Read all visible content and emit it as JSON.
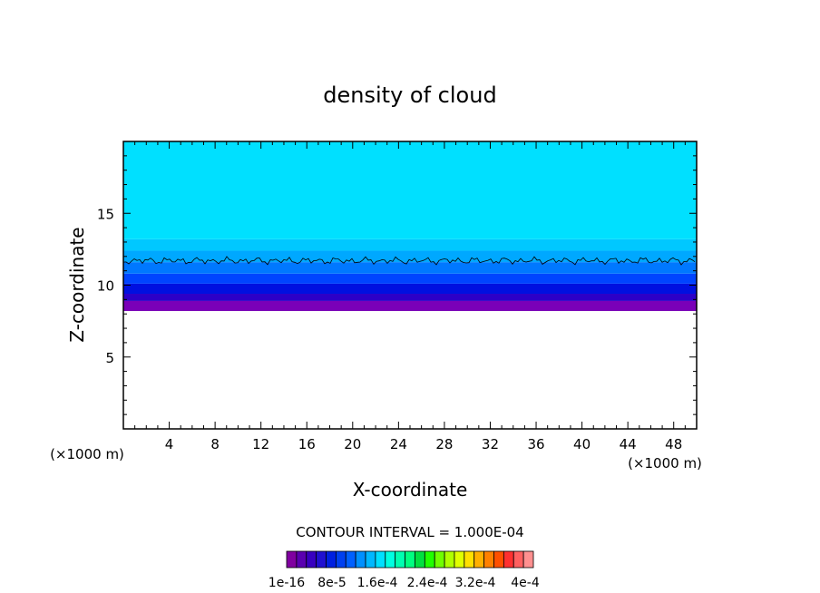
{
  "chart_data": {
    "type": "heatmap",
    "title": "density of cloud",
    "xlabel": "X-coordinate",
    "ylabel": "Z-coordinate",
    "x_unit": "(×1000 m)",
    "z_unit": "(×1000 m)",
    "xlim": [
      0,
      50
    ],
    "ylim": [
      0,
      20
    ],
    "x_ticks": [
      4,
      8,
      12,
      16,
      20,
      24,
      28,
      32,
      36,
      40,
      44,
      48
    ],
    "y_ticks": [
      5,
      10,
      15
    ],
    "contour_interval_label": "CONTOUR INTERVAL = 1.000E-04",
    "contour_line_z": 11.7,
    "layers": [
      {
        "z_from": 8.2,
        "z_to": 8.9,
        "color": "#7a00b8"
      },
      {
        "z_from": 8.9,
        "z_to": 9.4,
        "color": "#2c00c8"
      },
      {
        "z_from": 9.4,
        "z_to": 10.1,
        "color": "#0010e0"
      },
      {
        "z_from": 10.1,
        "z_to": 10.8,
        "color": "#0044ff"
      },
      {
        "z_from": 10.8,
        "z_to": 11.6,
        "color": "#0078ff"
      },
      {
        "z_from": 11.6,
        "z_to": 12.4,
        "color": "#00a8ff"
      },
      {
        "z_from": 12.4,
        "z_to": 13.2,
        "color": "#00c8ff"
      },
      {
        "z_from": 13.2,
        "z_to": 20.0,
        "color": "#00e0ff"
      }
    ],
    "colorbar": {
      "colors": [
        "#8000a0",
        "#5a00b0",
        "#3800c0",
        "#2010d0",
        "#0020e0",
        "#0040f0",
        "#0060ff",
        "#0090ff",
        "#00b8ff",
        "#00e0ff",
        "#00ffe0",
        "#00ffb0",
        "#00ff80",
        "#00e040",
        "#20ff00",
        "#70ff00",
        "#b0ff00",
        "#e0ff00",
        "#ffe000",
        "#ffb000",
        "#ff8000",
        "#ff5000",
        "#ff3030",
        "#ff6060",
        "#ff9090"
      ],
      "tick_labels": [
        "1e-16",
        "8e-5",
        "1.6e-4",
        "2.4e-4",
        "3.2e-4",
        "4e-4"
      ]
    }
  }
}
